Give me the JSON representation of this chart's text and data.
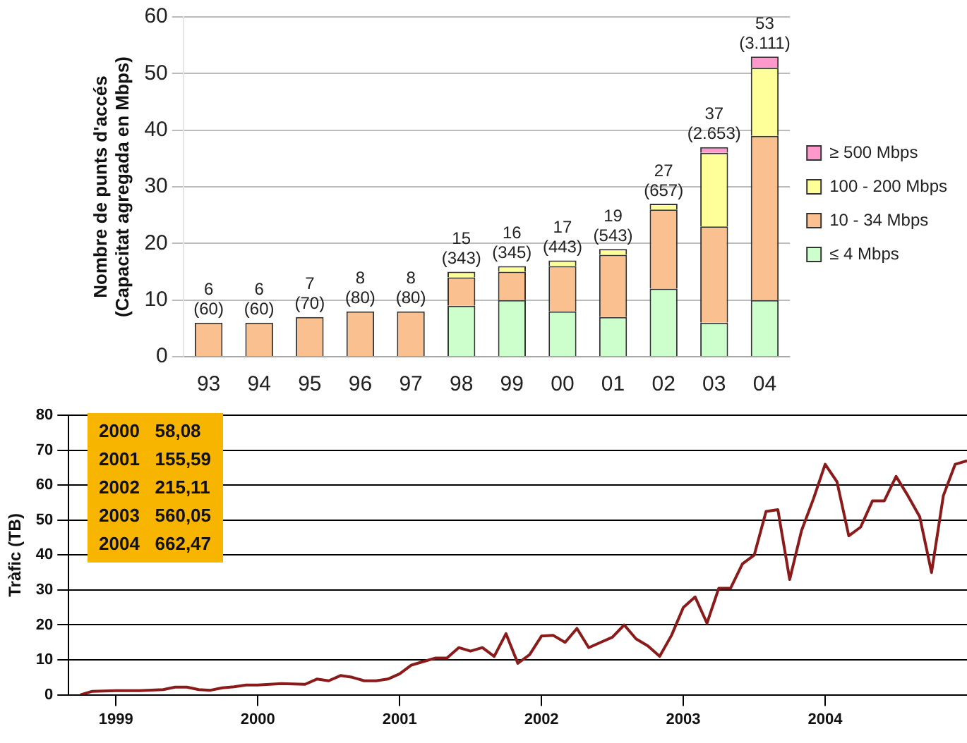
{
  "chart_data": [
    {
      "type": "bar",
      "stacked": true,
      "ylabel": "Nombre de punts d'accés\n(Capacitat agregada en Mbps)",
      "categories": [
        "93",
        "94",
        "95",
        "96",
        "97",
        "98",
        "99",
        "00",
        "01",
        "02",
        "03",
        "04"
      ],
      "series": [
        {
          "name": "≤ 4 Mbps",
          "color": "#ccffcc",
          "values": [
            0,
            0,
            0,
            0,
            0,
            9,
            10,
            8,
            7,
            12,
            6,
            10
          ]
        },
        {
          "name": "10 - 34 Mbps",
          "color": "#fac090",
          "values": [
            6,
            6,
            7,
            8,
            8,
            5,
            5,
            8,
            11,
            14,
            17,
            29
          ]
        },
        {
          "name": "100 - 200 Mbps",
          "color": "#ffff99",
          "values": [
            0,
            0,
            0,
            0,
            0,
            1,
            1,
            1,
            1,
            1,
            13,
            12
          ]
        },
        {
          "name": "≥ 500 Mbps",
          "color": "#ff99cc",
          "values": [
            0,
            0,
            0,
            0,
            0,
            0,
            0,
            0,
            0,
            0,
            1,
            2
          ]
        }
      ],
      "totals": [
        "6\n(60)",
        "6\n(60)",
        "7\n(70)",
        "8\n(80)",
        "8\n(80)",
        "15\n(343)",
        "16\n(345)",
        "17\n(443)",
        "19\n(543)",
        "27\n(657)",
        "37\n(2.653)",
        "53\n(3.111)"
      ],
      "ylim": [
        0,
        60
      ],
      "yticks": [
        0,
        10,
        20,
        30,
        40,
        50,
        60
      ],
      "grid": "y",
      "legend": "right"
    },
    {
      "type": "line",
      "ylabel": "Tràfic (TB)",
      "xlim": [
        "1998-09",
        "2005-01"
      ],
      "xticks": [
        {
          "value": "1999-01",
          "label": "1999"
        },
        {
          "value": "2000-01",
          "label": "2000"
        },
        {
          "value": "2001-01",
          "label": "2001"
        },
        {
          "value": "2002-01",
          "label": "2002"
        },
        {
          "value": "2003-01",
          "label": "2003"
        },
        {
          "value": "2004-01",
          "label": "2004"
        }
      ],
      "x": [
        "1998-10",
        "1998-11",
        "1999-01",
        "1999-03",
        "1999-05",
        "1999-06",
        "1999-07",
        "1999-08",
        "1999-09",
        "1999-10",
        "1999-11",
        "1999-12",
        "2000-01",
        "2000-03",
        "2000-05",
        "2000-06",
        "2000-07",
        "2000-08",
        "2000-09",
        "2000-10",
        "2000-11",
        "2000-12",
        "2001-01",
        "2001-02",
        "2001-03",
        "2001-04",
        "2001-05",
        "2001-06",
        "2001-07",
        "2001-08",
        "2001-09",
        "2001-10",
        "2001-11",
        "2001-12",
        "2002-01",
        "2002-02",
        "2002-03",
        "2002-04",
        "2002-05",
        "2002-06",
        "2002-07",
        "2002-08",
        "2002-09",
        "2002-10",
        "2002-11",
        "2002-12",
        "2003-01",
        "2003-02",
        "2003-03",
        "2003-04",
        "2003-05",
        "2003-06",
        "2003-07",
        "2003-08",
        "2003-09",
        "2003-10",
        "2003-11",
        "2003-12",
        "2004-01",
        "2004-02",
        "2004-03",
        "2004-04",
        "2004-05",
        "2004-06",
        "2004-07",
        "2004-08",
        "2004-09",
        "2004-10",
        "2004-11",
        "2004-12",
        "2005-01"
      ],
      "series": [
        {
          "color": "#8b1a1a",
          "values": [
            0,
            1,
            1.2,
            1.2,
            1.5,
            2.2,
            2.2,
            1.5,
            1.3,
            2,
            2.3,
            2.8,
            2.8,
            3.2,
            3,
            4.5,
            4,
            5.5,
            5,
            4,
            4,
            4.5,
            6,
            8.5,
            9.5,
            10.5,
            10.5,
            13.5,
            12.5,
            13.5,
            11,
            17.5,
            9,
            11.5,
            16.8,
            17,
            15,
            19,
            13.5,
            15,
            16.5,
            20,
            16,
            14,
            11,
            17,
            25,
            28,
            20.5,
            30.5,
            30.5,
            37.5,
            40,
            52.5,
            53,
            33,
            47,
            56,
            66,
            61,
            45.5,
            48,
            55.5,
            55.5,
            62.5,
            57,
            51,
            35,
            57,
            66,
            67
          ]
        }
      ],
      "ylim": [
        0,
        80
      ],
      "yticks": [
        0,
        10,
        20,
        30,
        40,
        50,
        60,
        70,
        80
      ],
      "grid": "y",
      "marker": "none",
      "line_style": "solid",
      "annotations": [
        "2000   58,08",
        "2001   155,59",
        "2002   215,11",
        "2003   560,05",
        "2004   662,47"
      ]
    }
  ]
}
